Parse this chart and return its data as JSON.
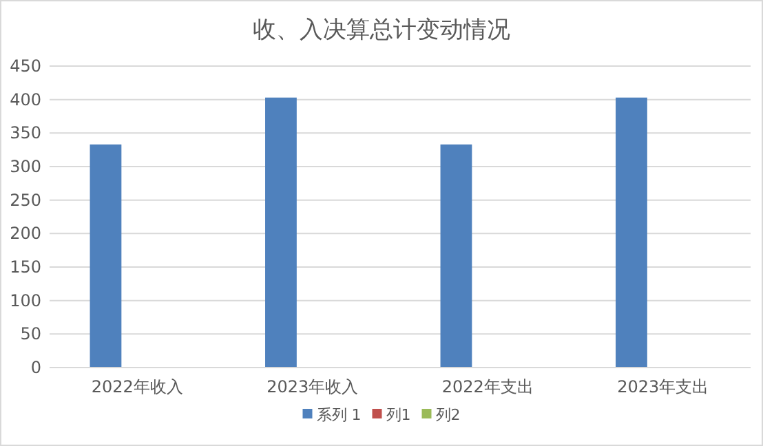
{
  "chart_data": {
    "type": "bar",
    "title": "收、入决算总计变动情况",
    "categories": [
      "2022年收入",
      "2023年收入",
      "2022年支出",
      "2023年支出"
    ],
    "series": [
      {
        "name": "系列 1",
        "color": "#4f81bd",
        "values": [
          333,
          403,
          333,
          403
        ]
      },
      {
        "name": "列1",
        "color": "#c0504d",
        "values": [
          null,
          null,
          null,
          null
        ]
      },
      {
        "name": "列2",
        "color": "#9bbb59",
        "values": [
          null,
          null,
          null,
          null
        ]
      }
    ],
    "ylim": [
      0,
      450
    ],
    "yticks": [
      0,
      50,
      100,
      150,
      200,
      250,
      300,
      350,
      400,
      450
    ],
    "grid": "y",
    "legend": "bottom"
  }
}
